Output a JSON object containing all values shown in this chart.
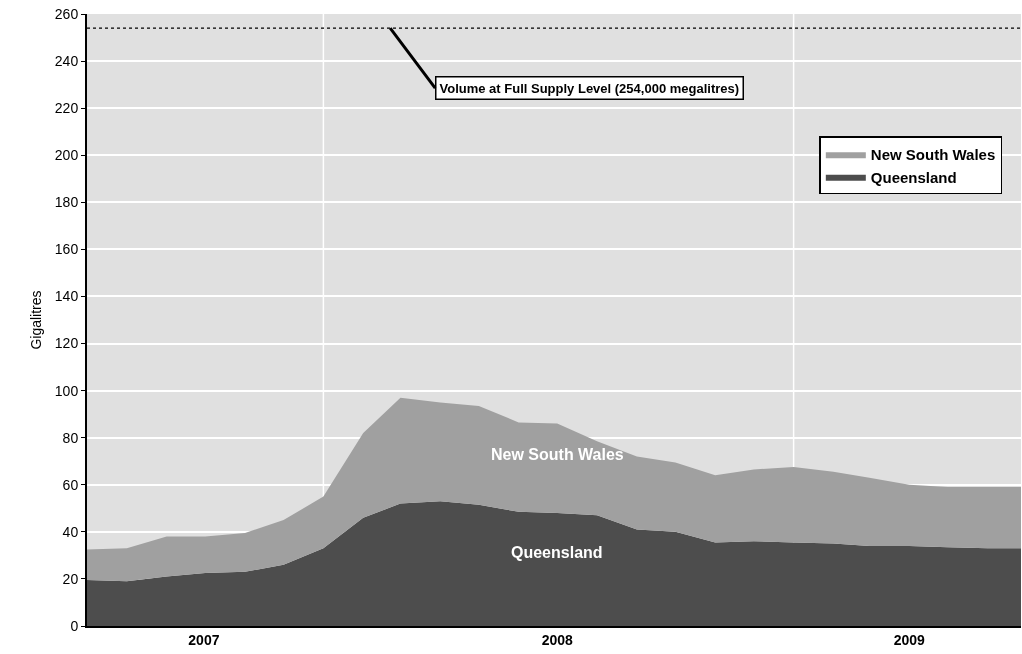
{
  "chart_data": {
    "type": "area",
    "ylabel": "Gigalitres",
    "stacked": true,
    "x": [
      "2007-07-01",
      "2007-08-01",
      "2007-09-01",
      "2007-10-01",
      "2007-11-01",
      "2007-12-01",
      "2008-01-01",
      "2008-02-01",
      "2008-03-01",
      "2008-04-01",
      "2008-05-01",
      "2008-06-01",
      "2008-07-01",
      "2008-08-01",
      "2008-09-01",
      "2008-10-01",
      "2008-11-01",
      "2008-12-01",
      "2009-01-01",
      "2009-02-01",
      "2009-03-01",
      "2009-04-01",
      "2009-05-01",
      "2009-06-01",
      "2009-06-27"
    ],
    "series": [
      {
        "name": "Queensland",
        "color": "#4d4d4d",
        "values": [
          19.5,
          19,
          21,
          22.5,
          23,
          26,
          33,
          46,
          52,
          53,
          51.5,
          48.5,
          48,
          47,
          41,
          40,
          35.5,
          36,
          35.5,
          35,
          34,
          34,
          33.5,
          33,
          33
        ]
      },
      {
        "name": "New South Wales",
        "color": "#a0a0a0",
        "values": [
          13,
          14,
          17,
          15.5,
          16.5,
          19,
          22,
          36,
          45,
          42,
          42,
          38,
          38,
          31.5,
          31,
          29.5,
          28.5,
          30.5,
          32,
          30.5,
          29,
          26,
          25.5,
          26,
          26
        ]
      }
    ],
    "xlim": [
      "2007-07-01",
      "2009-06-27"
    ],
    "xticks": [
      {
        "value": "2007-09-30",
        "label": "2007"
      },
      {
        "value": "2008-01-01",
        "label": null
      },
      {
        "value": "2008-07-01",
        "label": "2008"
      },
      {
        "value": "2009-01-01",
        "label": null
      },
      {
        "value": "2009-04-01",
        "label": "2009"
      }
    ],
    "ylim": [
      0,
      260
    ],
    "yticks": [
      0,
      20,
      40,
      60,
      80,
      100,
      120,
      140,
      160,
      180,
      200,
      220,
      240,
      260
    ],
    "ref_lines": [
      {
        "axis": "y",
        "value": 254,
        "label": "Volume at Full Supply Level (254,000 megalitres)",
        "line_style": "dotted",
        "color": "#000000"
      }
    ],
    "grid": true,
    "legend": "top right"
  }
}
